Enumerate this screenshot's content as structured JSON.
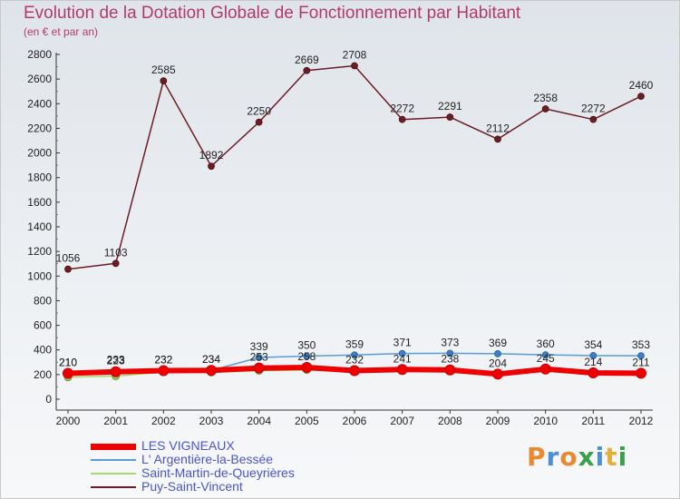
{
  "title": "Evolution de la Dotation Globale de Fonctionnement par Habitant",
  "subtitle": "(en € et par an)",
  "chart_data": {
    "type": "line",
    "title": "Evolution de la Dotation Globale de Fonctionnement par Habitant",
    "ylabel": "(en € et par an)",
    "ylim": [
      0,
      2800
    ],
    "y_ticks": [
      0,
      200,
      400,
      600,
      800,
      1000,
      1200,
      1400,
      1600,
      1800,
      2000,
      2200,
      2400,
      2600,
      2800
    ],
    "grid": false,
    "legend_position": "bottom-left",
    "x": [
      "2000",
      "2001",
      "2002",
      "2003",
      "2004",
      "2005",
      "2006",
      "2007",
      "2008",
      "2009",
      "2010",
      "2011",
      "2012"
    ],
    "series": [
      {
        "name": "LES VIGNEAUX",
        "color": "#ee0000",
        "values": [
          210,
          223,
          232,
          234,
          253,
          258,
          232,
          241,
          238,
          204,
          245,
          214,
          211
        ]
      },
      {
        "name": "L' Argentière-la-Bessée",
        "color": "#5b9bd5",
        "values": [
          210,
          233,
          232,
          234,
          339,
          350,
          359,
          371,
          373,
          369,
          360,
          354,
          353
        ]
      },
      {
        "name": "Saint-Martin-de-Queyrières",
        "color": "#a6d96a",
        "values": [
          179,
          188,
          220,
          218,
          232,
          238,
          225,
          234,
          235,
          211,
          236,
          227,
          221
        ]
      },
      {
        "name": "Puy-Saint-Vincent",
        "color": "#6b1d24",
        "values": [
          1056,
          1103,
          2585,
          1892,
          2250,
          2669,
          2708,
          2272,
          2291,
          2112,
          2358,
          2272,
          2460
        ]
      }
    ],
    "labeled_series": [
      "LES VIGNEAUX",
      "L' Argentière-la-Bessée",
      "Puy-Saint-Vincent"
    ]
  },
  "logo": {
    "letters": [
      "P",
      "r",
      "o",
      "x",
      "i",
      "t",
      "i"
    ],
    "colors": [
      "#e98a2e",
      "#4a90d9",
      "#e98a2e",
      "#3aa04a",
      "#4a90d9",
      "#e0b13a",
      "#3aa04a"
    ]
  }
}
